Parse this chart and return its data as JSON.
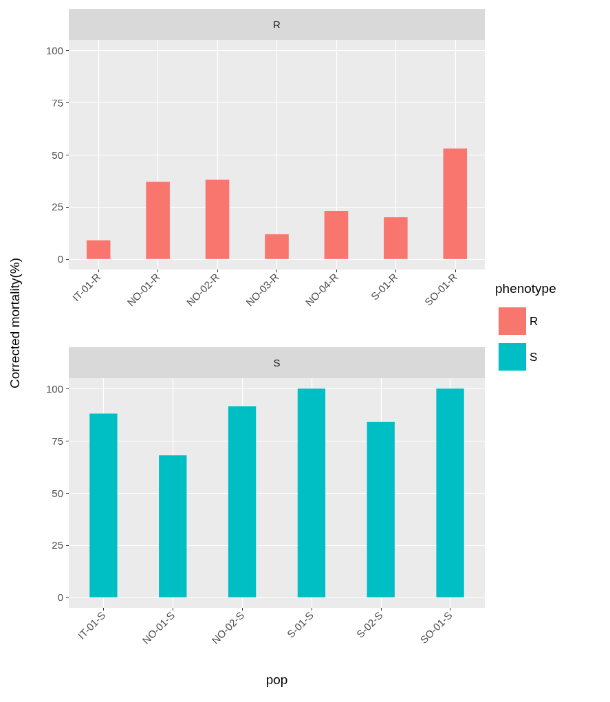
{
  "chart_data": [
    {
      "type": "bar",
      "title": "R",
      "ylabel": "Corrected mortality(%)",
      "legend_title": "phenotype",
      "legend": "right",
      "grid": true,
      "categories": [
        "IT-01-R",
        "NO-01-R",
        "NO-02-R",
        "NO-03-R",
        "NO-04-R",
        "S-01-R",
        "SO-01-R"
      ],
      "series": [
        {
          "name": "R",
          "color": "#f8766d",
          "values": [
            9,
            37,
            38,
            12,
            23,
            20,
            53
          ]
        }
      ],
      "ylim": [
        -5,
        105
      ],
      "yticks": [
        0,
        25,
        50,
        75,
        100
      ]
    },
    {
      "type": "bar",
      "title": "S",
      "xlabel": "pop",
      "legend": "right",
      "grid": true,
      "categories": [
        "IT-01-S",
        "NO-01-S",
        "NO-02-S",
        "S-01-S",
        "S-02-S",
        "SO-01-S"
      ],
      "series": [
        {
          "name": "S",
          "color": "#00bfc4",
          "values": [
            88,
            68,
            91.5,
            100,
            84,
            100
          ]
        }
      ],
      "ylim": [
        -5,
        105
      ],
      "yticks": [
        0,
        25,
        50,
        75,
        100
      ]
    }
  ]
}
